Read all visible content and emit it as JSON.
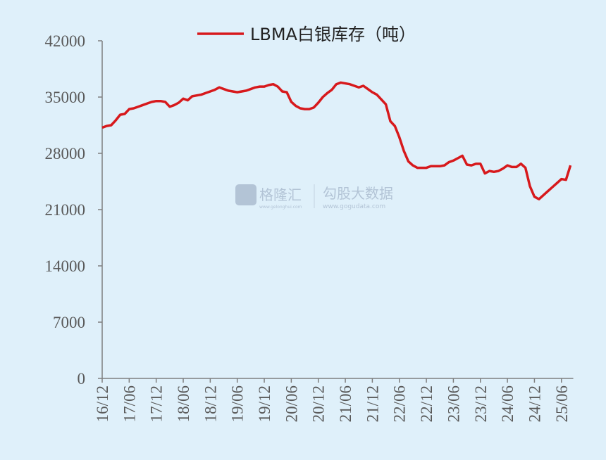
{
  "chart_data": {
    "type": "line",
    "categories": [
      "16/12",
      null,
      null,
      null,
      null,
      null,
      "17/06",
      null,
      null,
      null,
      null,
      null,
      "17/12",
      null,
      null,
      null,
      null,
      null,
      "18/06",
      null,
      null,
      null,
      null,
      null,
      "18/12",
      null,
      null,
      null,
      null,
      null,
      "19/06",
      null,
      null,
      null,
      null,
      null,
      "19/12",
      null,
      null,
      null,
      null,
      null,
      "20/06",
      null,
      null,
      null,
      null,
      null,
      "20/12",
      null,
      null,
      null,
      null,
      null,
      "21/06",
      null,
      null,
      null,
      null,
      null,
      "21/12",
      null,
      null,
      null,
      null,
      null,
      "22/06",
      null,
      null,
      null,
      null,
      null,
      "22/12",
      null,
      null,
      null,
      null,
      null,
      "23/06",
      null,
      null,
      null,
      null,
      null,
      "23/12",
      null,
      null,
      null,
      null,
      null,
      "24/06",
      null,
      null,
      null,
      null,
      null,
      "24/12",
      null,
      null,
      null,
      null,
      null,
      "25/06",
      null,
      null
    ],
    "series": [
      {
        "name": "LBMA白银库存（吨）",
        "color": "#d7191c",
        "values": [
          31200,
          31400,
          31500,
          32100,
          32800,
          32900,
          33500,
          33600,
          33800,
          34000,
          34200,
          34400,
          34500,
          34500,
          34400,
          33800,
          34000,
          34300,
          34800,
          34600,
          35100,
          35200,
          35300,
          35500,
          35700,
          35900,
          36200,
          36000,
          35800,
          35700,
          35600,
          35700,
          35800,
          36000,
          36200,
          36300,
          36300,
          36500,
          36600,
          36300,
          35700,
          35600,
          34400,
          33900,
          33600,
          33500,
          33500,
          33700,
          34300,
          35000,
          35500,
          35900,
          36600,
          36800,
          36700,
          36600,
          36400,
          36200,
          36400,
          36000,
          35600,
          35300,
          34700,
          34100,
          32000,
          31400,
          30000,
          28300,
          27000,
          26500,
          26200,
          26200,
          26200,
          26400,
          26400,
          26400,
          26500,
          26900,
          27100,
          27400,
          27700,
          26600,
          26500,
          26700,
          26700,
          25500,
          25800,
          25700,
          25800,
          26100,
          26500,
          26300,
          26300,
          26700,
          26200,
          23900,
          22600,
          22300,
          22800,
          23300,
          23800,
          24300,
          24800,
          24700,
          26500
        ]
      }
    ],
    "ylim": [
      0,
      42000
    ],
    "yticks": [
      0,
      7000,
      14000,
      21000,
      28000,
      35000,
      42000
    ]
  },
  "watermark": {
    "brand": "格隆汇",
    "brand_url": "www.gelonghui.com",
    "source": "勾股大数据",
    "source_url": "www.gogudata.com"
  }
}
